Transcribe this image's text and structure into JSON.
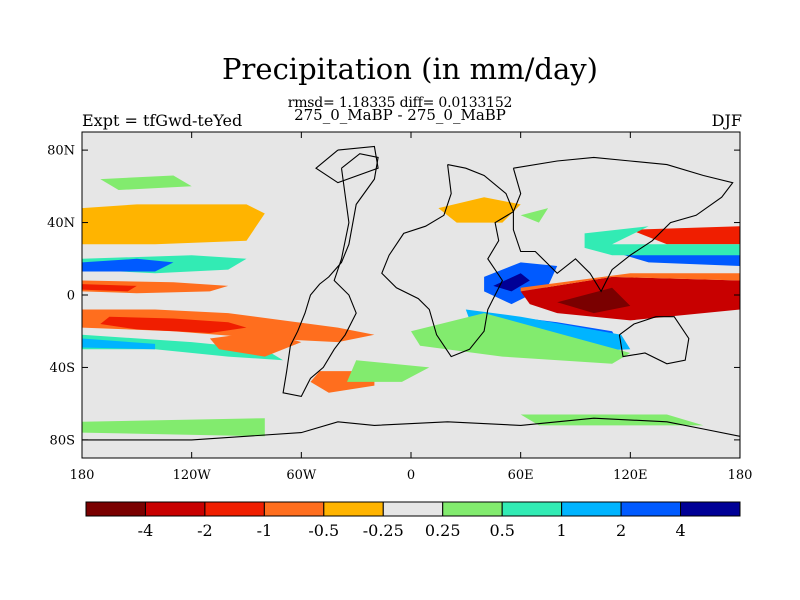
{
  "chart_data": {
    "type": "heatmap",
    "title": "Precipitation (in mm/day)",
    "stats_line": "rmsd= 1.18335 diff= 0.0133152",
    "subtitle": "275_0_MaBP - 275_0_MaBP",
    "left_label": "Expt = tfGwd-teYed",
    "right_label": "DJF",
    "x_ticks": [
      "180",
      "120W",
      "60W",
      "0",
      "60E",
      "120E",
      "180"
    ],
    "x_tick_values": [
      -180,
      -120,
      -60,
      0,
      60,
      120,
      180
    ],
    "y_ticks": [
      "80N",
      "40N",
      "0",
      "40S",
      "80S"
    ],
    "y_tick_values": [
      80,
      40,
      0,
      -40,
      -80
    ],
    "xlim": [
      -180,
      180
    ],
    "ylim": [
      -90,
      90
    ],
    "background_color": "#e6e6e6",
    "colorbar": {
      "colors": [
        "#7a0000",
        "#c80000",
        "#f01e00",
        "#ff6e1e",
        "#ffb400",
        "#e6e6e6",
        "#82eb6e",
        "#32ebb4",
        "#00b4ff",
        "#005aff",
        "#000096"
      ],
      "labels": [
        "-4",
        "-2",
        "-1",
        "-0.5",
        "-0.25",
        "0.25",
        "0.5",
        "1",
        "2",
        "4"
      ]
    },
    "regions": [
      {
        "name": "tropical-sw-dry-band",
        "color": "#ff6e1e",
        "pts": [
          [
            -180,
            -8
          ],
          [
            -140,
            -8
          ],
          [
            -100,
            -10
          ],
          [
            -70,
            -14
          ],
          [
            -40,
            -18
          ],
          [
            -20,
            -22
          ],
          [
            -40,
            -26
          ],
          [
            -80,
            -24
          ],
          [
            -130,
            -20
          ],
          [
            -180,
            -18
          ]
        ]
      },
      {
        "name": "tropical-sw-dry-core",
        "color": "#f01e00",
        "pts": [
          [
            -165,
            -12
          ],
          [
            -130,
            -13
          ],
          [
            -100,
            -15
          ],
          [
            -90,
            -18
          ],
          [
            -110,
            -21
          ],
          [
            -150,
            -19
          ],
          [
            -170,
            -16
          ]
        ]
      },
      {
        "name": "north-pacific-dry",
        "color": "#ff6e1e",
        "pts": [
          [
            -180,
            45
          ],
          [
            -160,
            46
          ],
          [
            -140,
            40
          ],
          [
            -160,
            30
          ],
          [
            -180,
            30
          ]
        ]
      },
      {
        "name": "north-pacific-dry-2",
        "color": "#ff6e1e",
        "pts": [
          [
            -120,
            46
          ],
          [
            -100,
            48
          ],
          [
            -85,
            44
          ],
          [
            -95,
            34
          ],
          [
            -120,
            34
          ]
        ]
      },
      {
        "name": "north-pacific-yellow",
        "color": "#ffb400",
        "pts": [
          [
            -180,
            48
          ],
          [
            -150,
            50
          ],
          [
            -90,
            50
          ],
          [
            -80,
            45
          ],
          [
            -90,
            30
          ],
          [
            -140,
            28
          ],
          [
            -180,
            28
          ]
        ]
      },
      {
        "name": "pacific-subtropic-cyan",
        "color": "#32ebb4",
        "pts": [
          [
            -180,
            20
          ],
          [
            -120,
            22
          ],
          [
            -90,
            20
          ],
          [
            -100,
            14
          ],
          [
            -140,
            12
          ],
          [
            -180,
            14
          ]
        ]
      },
      {
        "name": "pacific-blue-band",
        "color": "#005aff",
        "pts": [
          [
            -180,
            18
          ],
          [
            -150,
            20
          ],
          [
            -130,
            18
          ],
          [
            -140,
            13
          ],
          [
            -180,
            13
          ]
        ]
      },
      {
        "name": "equatorial-dry",
        "color": "#ff6e1e",
        "pts": [
          [
            -180,
            8
          ],
          [
            -130,
            7
          ],
          [
            -100,
            5
          ],
          [
            -110,
            2
          ],
          [
            -150,
            1
          ],
          [
            -180,
            2
          ]
        ]
      },
      {
        "name": "equatorial-red",
        "color": "#f01e00",
        "pts": [
          [
            -180,
            6
          ],
          [
            -150,
            5
          ],
          [
            -155,
            2
          ],
          [
            -180,
            3
          ]
        ]
      },
      {
        "name": "south-wet-band",
        "color": "#32ebb4",
        "pts": [
          [
            -180,
            -22
          ],
          [
            -120,
            -26
          ],
          [
            -80,
            -30
          ],
          [
            -70,
            -36
          ],
          [
            -100,
            -34
          ],
          [
            -140,
            -30
          ],
          [
            -180,
            -30
          ]
        ]
      },
      {
        "name": "south-blue",
        "color": "#00b4ff",
        "pts": [
          [
            -180,
            -24
          ],
          [
            -140,
            -27
          ],
          [
            -140,
            -30
          ],
          [
            -180,
            -29
          ]
        ]
      },
      {
        "name": "south-orange",
        "color": "#ff6e1e",
        "pts": [
          [
            -110,
            -24
          ],
          [
            -80,
            -20
          ],
          [
            -60,
            -26
          ],
          [
            -80,
            -34
          ],
          [
            -105,
            -30
          ]
        ]
      },
      {
        "name": "south-atlantic-orange",
        "color": "#ff6e1e",
        "pts": [
          [
            -50,
            -42
          ],
          [
            -20,
            -42
          ],
          [
            -20,
            -50
          ],
          [
            -45,
            -54
          ],
          [
            -55,
            -48
          ]
        ]
      },
      {
        "name": "africa-wet",
        "color": "#005aff",
        "pts": [
          [
            40,
            10
          ],
          [
            60,
            18
          ],
          [
            80,
            16
          ],
          [
            75,
            5
          ],
          [
            55,
            -5
          ],
          [
            40,
            2
          ]
        ]
      },
      {
        "name": "africa-dark",
        "color": "#000096",
        "pts": [
          [
            45,
            5
          ],
          [
            60,
            12
          ],
          [
            65,
            8
          ],
          [
            55,
            2
          ]
        ]
      },
      {
        "name": "indian-dry",
        "color": "#c80000",
        "pts": [
          [
            60,
            2
          ],
          [
            110,
            10
          ],
          [
            180,
            8
          ],
          [
            180,
            -8
          ],
          [
            120,
            -14
          ],
          [
            80,
            -10
          ],
          [
            65,
            -5
          ]
        ]
      },
      {
        "name": "indian-dark",
        "color": "#7a0000",
        "pts": [
          [
            80,
            -4
          ],
          [
            110,
            4
          ],
          [
            120,
            -6
          ],
          [
            100,
            -10
          ]
        ]
      },
      {
        "name": "indian-orange",
        "color": "#ff6e1e",
        "pts": [
          [
            60,
            4
          ],
          [
            120,
            12
          ],
          [
            180,
            12
          ],
          [
            180,
            8
          ],
          [
            110,
            10
          ],
          [
            60,
            2
          ]
        ]
      },
      {
        "name": "sio-wet",
        "color": "#005aff",
        "pts": [
          [
            40,
            -10
          ],
          [
            80,
            -15
          ],
          [
            110,
            -20
          ],
          [
            115,
            -28
          ],
          [
            80,
            -26
          ],
          [
            50,
            -22
          ]
        ]
      },
      {
        "name": "sio-cyan",
        "color": "#00b4ff",
        "pts": [
          [
            30,
            -8
          ],
          [
            60,
            -12
          ],
          [
            115,
            -22
          ],
          [
            120,
            -30
          ],
          [
            75,
            -32
          ],
          [
            35,
            -22
          ]
        ]
      },
      {
        "name": "sio-green",
        "color": "#82eb6e",
        "pts": [
          [
            0,
            -20
          ],
          [
            40,
            -10
          ],
          [
            120,
            -32
          ],
          [
            110,
            -38
          ],
          [
            50,
            -34
          ],
          [
            5,
            -28
          ]
        ]
      },
      {
        "name": "np-red",
        "color": "#f01e00",
        "pts": [
          [
            120,
            36
          ],
          [
            180,
            38
          ],
          [
            180,
            28
          ],
          [
            140,
            28
          ]
        ]
      },
      {
        "name": "np-blue",
        "color": "#005aff",
        "pts": [
          [
            110,
            24
          ],
          [
            180,
            24
          ],
          [
            180,
            16
          ],
          [
            130,
            18
          ]
        ]
      },
      {
        "name": "np-cyan",
        "color": "#32ebb4",
        "pts": [
          [
            95,
            34
          ],
          [
            130,
            38
          ],
          [
            110,
            28
          ],
          [
            180,
            28
          ],
          [
            180,
            22
          ],
          [
            110,
            22
          ],
          [
            95,
            26
          ]
        ]
      },
      {
        "name": "eurasia-yellow",
        "color": "#ffb400",
        "pts": [
          [
            15,
            48
          ],
          [
            40,
            54
          ],
          [
            60,
            50
          ],
          [
            50,
            40
          ],
          [
            25,
            40
          ]
        ]
      },
      {
        "name": "eurasia-green",
        "color": "#82eb6e",
        "pts": [
          [
            60,
            44
          ],
          [
            75,
            48
          ],
          [
            70,
            40
          ]
        ]
      },
      {
        "name": "africa-green",
        "color": "#82eb6e",
        "pts": [
          [
            -30,
            -36
          ],
          [
            10,
            -40
          ],
          [
            -5,
            -48
          ],
          [
            -35,
            -48
          ]
        ]
      },
      {
        "name": "antarctic-green",
        "color": "#82eb6e",
        "pts": [
          [
            -180,
            -70
          ],
          [
            -80,
            -68
          ],
          [
            -80,
            -78
          ],
          [
            -180,
            -76
          ]
        ]
      },
      {
        "name": "antarctic-green-2",
        "color": "#82eb6e",
        "pts": [
          [
            60,
            -66
          ],
          [
            140,
            -66
          ],
          [
            160,
            -72
          ],
          [
            70,
            -72
          ]
        ]
      },
      {
        "name": "arctic-green",
        "color": "#82eb6e",
        "pts": [
          [
            -170,
            64
          ],
          [
            -130,
            66
          ],
          [
            -120,
            60
          ],
          [
            -160,
            58
          ]
        ]
      }
    ],
    "coastlines": [
      {
        "name": "south-america",
        "pts": [
          [
            -38,
            70
          ],
          [
            -28,
            78
          ],
          [
            -18,
            76
          ],
          [
            -20,
            64
          ],
          [
            -30,
            50
          ],
          [
            -34,
            28
          ],
          [
            -38,
            18
          ],
          [
            -45,
            10
          ],
          [
            -50,
            6
          ],
          [
            -55,
            0
          ],
          [
            -58,
            -10
          ],
          [
            -62,
            -20
          ],
          [
            -66,
            -28
          ],
          [
            -68,
            -42
          ],
          [
            -70,
            -54
          ],
          [
            -60,
            -56
          ],
          [
            -55,
            -46
          ],
          [
            -48,
            -40
          ],
          [
            -42,
            -30
          ],
          [
            -36,
            -22
          ],
          [
            -30,
            -10
          ],
          [
            -34,
            0
          ],
          [
            -42,
            8
          ],
          [
            -38,
            20
          ],
          [
            -34,
            40
          ],
          [
            -38,
            70
          ]
        ]
      },
      {
        "name": "africa-europe",
        "pts": [
          [
            20,
            72
          ],
          [
            30,
            70
          ],
          [
            40,
            66
          ],
          [
            52,
            56
          ],
          [
            56,
            46
          ],
          [
            46,
            40
          ],
          [
            48,
            30
          ],
          [
            42,
            20
          ],
          [
            50,
            8
          ],
          [
            42,
            -8
          ],
          [
            40,
            -20
          ],
          [
            32,
            -30
          ],
          [
            22,
            -34
          ],
          [
            14,
            -22
          ],
          [
            10,
            -8
          ],
          [
            4,
            -2
          ],
          [
            -8,
            4
          ],
          [
            -16,
            12
          ],
          [
            -12,
            22
          ],
          [
            -4,
            34
          ],
          [
            8,
            38
          ],
          [
            18,
            44
          ],
          [
            22,
            56
          ],
          [
            20,
            72
          ]
        ]
      },
      {
        "name": "asia",
        "pts": [
          [
            56,
            70
          ],
          [
            80,
            74
          ],
          [
            100,
            76
          ],
          [
            120,
            74
          ],
          [
            140,
            72
          ],
          [
            160,
            66
          ],
          [
            176,
            62
          ],
          [
            170,
            54
          ],
          [
            156,
            44
          ],
          [
            142,
            40
          ],
          [
            132,
            30
          ],
          [
            120,
            22
          ],
          [
            110,
            14
          ],
          [
            104,
            2
          ],
          [
            98,
            12
          ],
          [
            90,
            20
          ],
          [
            80,
            12
          ],
          [
            74,
            18
          ],
          [
            68,
            24
          ],
          [
            60,
            24
          ],
          [
            56,
            36
          ],
          [
            56,
            46
          ],
          [
            60,
            56
          ],
          [
            56,
            70
          ]
        ]
      },
      {
        "name": "australia",
        "pts": [
          [
            114,
            -22
          ],
          [
            122,
            -16
          ],
          [
            134,
            -12
          ],
          [
            144,
            -12
          ],
          [
            152,
            -24
          ],
          [
            150,
            -36
          ],
          [
            140,
            -38
          ],
          [
            128,
            -32
          ],
          [
            116,
            -34
          ],
          [
            114,
            -22
          ]
        ]
      },
      {
        "name": "antarctica",
        "pts": [
          [
            -180,
            -80
          ],
          [
            -120,
            -80
          ],
          [
            -60,
            -76
          ],
          [
            -40,
            -70
          ],
          [
            -20,
            -72
          ],
          [
            20,
            -70
          ],
          [
            60,
            -72
          ],
          [
            100,
            -68
          ],
          [
            140,
            -70
          ],
          [
            160,
            -74
          ],
          [
            180,
            -78
          ],
          [
            180,
            -90
          ],
          [
            -180,
            -90
          ]
        ]
      },
      {
        "name": "greenland",
        "pts": [
          [
            -40,
            80
          ],
          [
            -20,
            82
          ],
          [
            -18,
            70
          ],
          [
            -40,
            62
          ],
          [
            -52,
            70
          ],
          [
            -40,
            80
          ]
        ]
      }
    ]
  }
}
